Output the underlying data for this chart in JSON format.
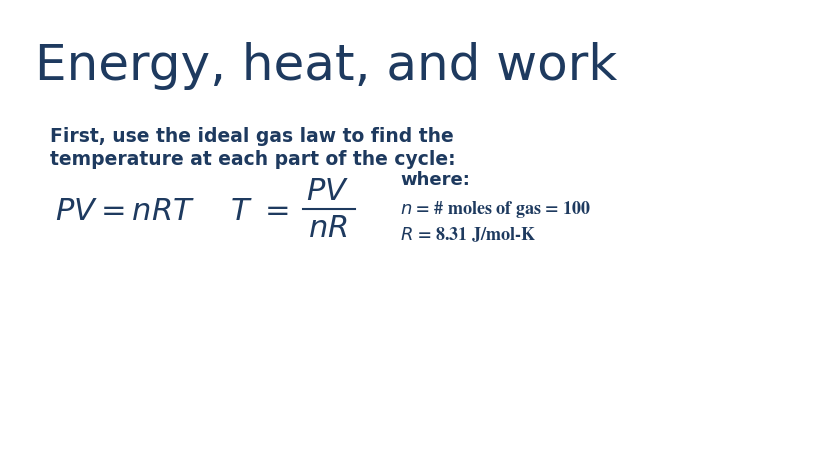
{
  "title": "Energy, heat, and work",
  "title_color": "#1e3a5f",
  "title_fontsize": 36,
  "body_text_line1": "First, use the ideal gas law to find the",
  "body_text_line2": "temperature at each part of the cycle:",
  "body_text_color": "#1e3a5f",
  "body_fontsize": 13.5,
  "formula_color": "#1e3a5f",
  "formula_fontsize": 22,
  "where_fontsize": 13,
  "bg_color": "#ffffff",
  "fig_width": 8.16,
  "fig_height": 4.57,
  "dpi": 100
}
